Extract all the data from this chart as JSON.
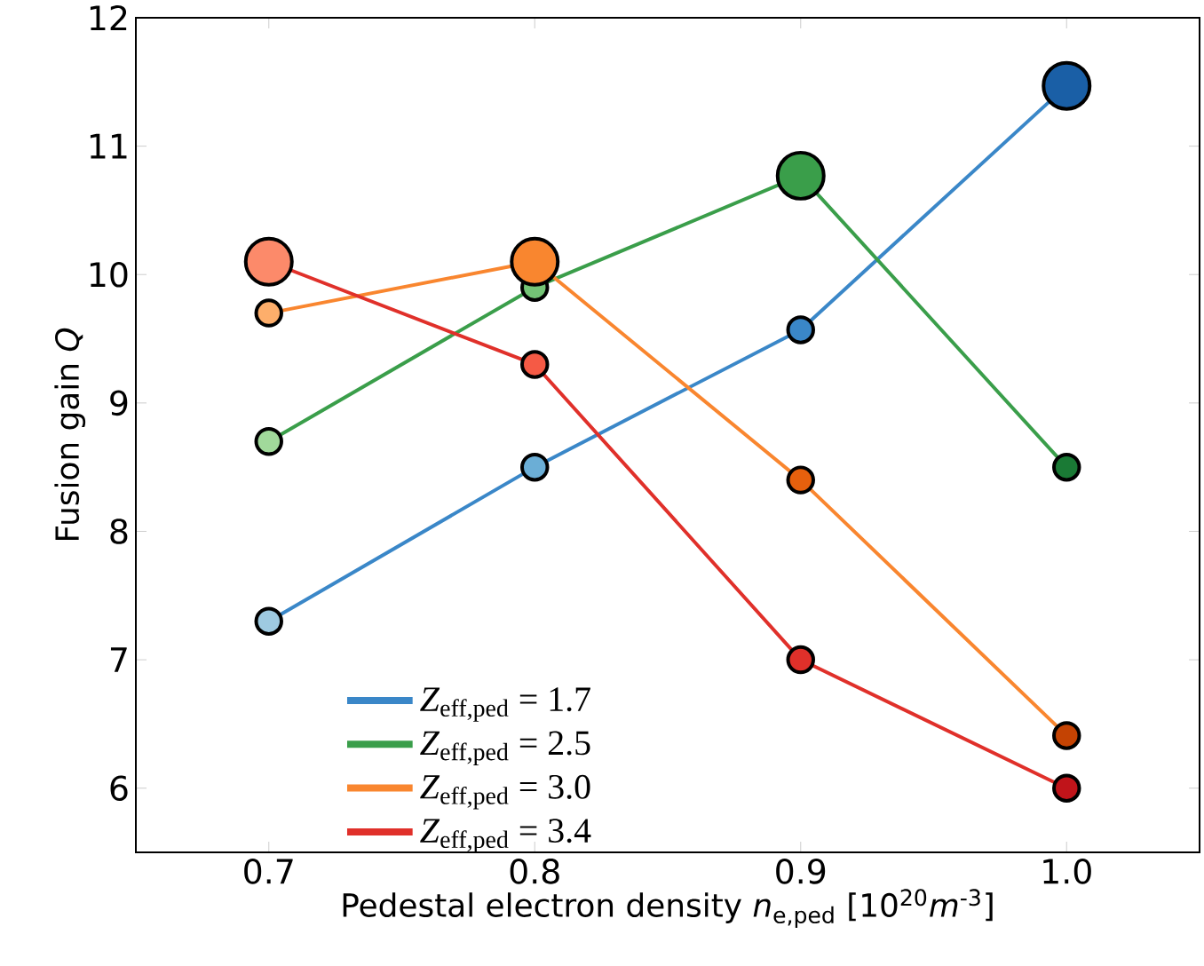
{
  "chart_data": {
    "type": "line",
    "xlabel": "Pedestal electron density *n*$_{e,ped}$ [10$^{20}$*m*$^{-3}$]",
    "ylabel": "Fusion gain *Q*",
    "x": [
      0.7,
      0.8,
      0.9,
      1.0
    ],
    "series": [
      {
        "name": "*Z*$_{eff,ped}$ = 1.7",
        "color": "#3a87c8",
        "values": [
          7.3,
          8.5,
          9.57,
          11.47
        ],
        "colors": [
          "#9ecae1",
          "#6baed6",
          "#3a87c8",
          "#1a5fa6"
        ]
      },
      {
        "name": "*Z*$_{eff,ped}$ = 2.5",
        "color": "#3a9e4a",
        "values": [
          8.7,
          9.9,
          10.77,
          8.5
        ],
        "colors": [
          "#a1d99b",
          "#74c476",
          "#3a9e4a",
          "#1a7a35"
        ]
      },
      {
        "name": "*Z*$_{eff,ped}$ = 3.0",
        "color": "#f9862f",
        "values": [
          9.7,
          10.1,
          8.4,
          6.41
        ],
        "colors": [
          "#fdae6b",
          "#f9862f",
          "#e6600d",
          "#c44303"
        ]
      },
      {
        "name": "*Z*$_{eff,ped}$ = 3.4",
        "color": "#e0302a",
        "values": [
          10.1,
          9.3,
          7.0,
          6.0
        ],
        "colors": [
          "#fc8a6a",
          "#f55a45",
          "#e0302a",
          "#c0141a"
        ]
      }
    ],
    "xlim": [
      0.65,
      1.05
    ],
    "xticks": [
      {
        "value": 0.7,
        "label": "0.7"
      },
      {
        "value": 0.8,
        "label": "0.8"
      },
      {
        "value": 0.9,
        "label": "0.9"
      },
      {
        "value": 1.0,
        "label": "1.0"
      }
    ],
    "ylim": [
      5.5,
      12
    ],
    "yticks": [
      6,
      7,
      8,
      9,
      10,
      11,
      12
    ],
    "legend": "bottom left",
    "marker": "circle",
    "line_style": "solid",
    "grid": false
  }
}
